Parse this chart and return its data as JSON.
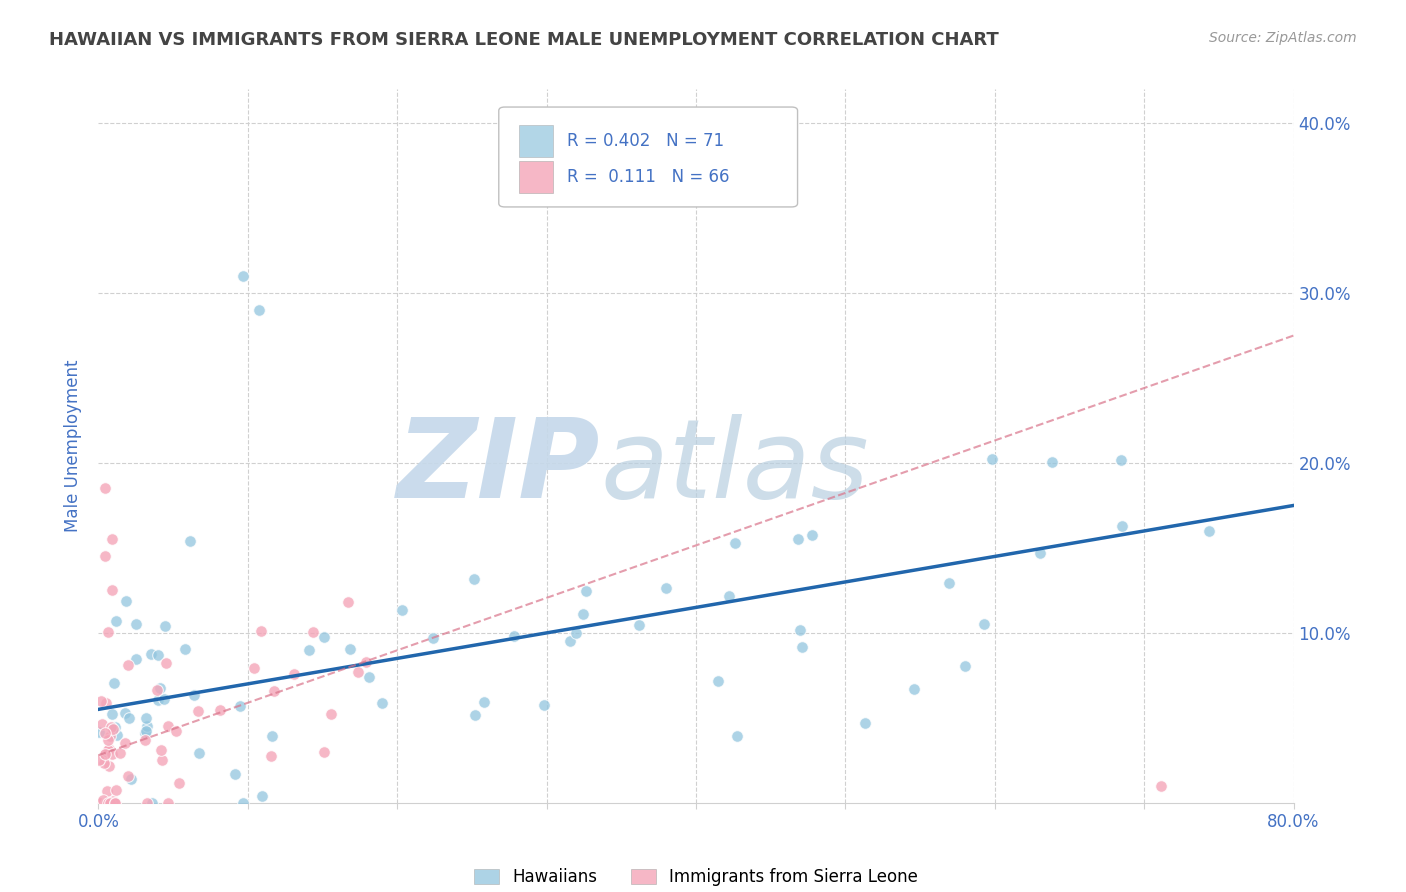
{
  "title": "HAWAIIAN VS IMMIGRANTS FROM SIERRA LEONE MALE UNEMPLOYMENT CORRELATION CHART",
  "source": "Source: ZipAtlas.com",
  "ylabel": "Male Unemployment",
  "xmin": 0.0,
  "xmax": 0.8,
  "ymin": 0.0,
  "ymax": 0.42,
  "yticks": [
    0.0,
    0.1,
    0.2,
    0.3,
    0.4
  ],
  "ytick_labels_right": [
    "",
    "10.0%",
    "20.0%",
    "30.0%",
    "40.0%"
  ],
  "xticks": [
    0.0,
    0.1,
    0.2,
    0.3,
    0.4,
    0.5,
    0.6,
    0.7,
    0.8
  ],
  "hawaiian_color": "#92c5de",
  "sierraleone_color": "#f4a5b8",
  "hawaiian_line_color": "#2166ac",
  "sierraleone_line_color": "#d9748a",
  "watermark_zip": "ZIP",
  "watermark_atlas": "atlas",
  "watermark_color_zip": "#c5d8ea",
  "watermark_color_atlas": "#b8cfe0",
  "background_color": "#ffffff",
  "grid_color": "#d0d0d0",
  "title_color": "#444444",
  "axis_label_color": "#4472c4",
  "tick_label_color": "#4472c4",
  "hawaiian_N": 71,
  "sierraleone_N": 66,
  "hawaiian_line_x0": 0.0,
  "hawaiian_line_y0": 0.055,
  "hawaiian_line_x1": 0.8,
  "hawaiian_line_y1": 0.175,
  "sierraleone_line_x0": 0.0,
  "sierraleone_line_y0": 0.028,
  "sierraleone_line_x1": 0.8,
  "sierraleone_line_y1": 0.275
}
